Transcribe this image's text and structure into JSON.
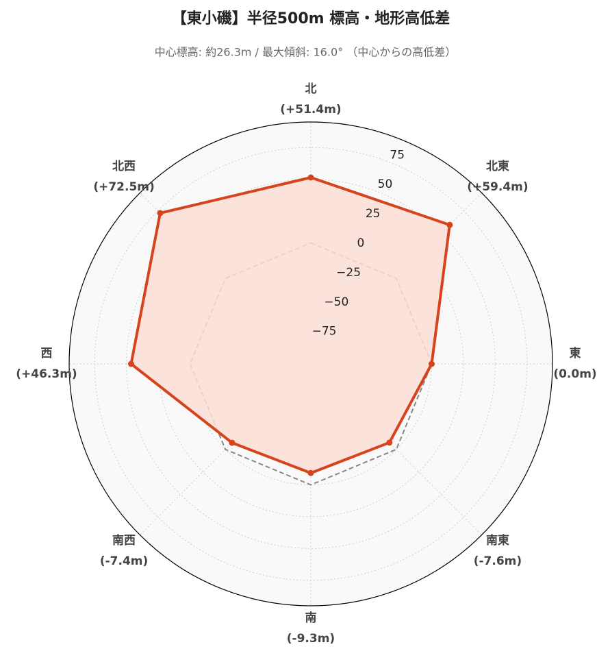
{
  "chart_data": {
    "type": "radar",
    "title": "【東小磯】半径500m 標高・地形高低差",
    "subtitle": "中心標高: 約26.3m / 最大傾斜: 16.0° （中心からの高低差）",
    "categories": [
      "北",
      "北東",
      "東",
      "南東",
      "南",
      "南西",
      "西",
      "北西"
    ],
    "values": [
      51.4,
      59.4,
      0.0,
      -7.6,
      -9.3,
      -7.4,
      46.3,
      72.5
    ],
    "value_labels": [
      "(+51.4m)",
      "(+59.4m)",
      "(0.0m)",
      "(-7.6m)",
      "(-9.3m)",
      "(-7.4m)",
      "(+46.3m)",
      "(+72.5m)"
    ],
    "color": "#d5441c",
    "fill_color": "#fcded6",
    "baseline": 0,
    "ylim": [
      -95,
      95
    ],
    "yticks": [
      {
        "value": -75,
        "label": "−75"
      },
      {
        "value": -50,
        "label": "−50"
      },
      {
        "value": -25,
        "label": "−25"
      },
      0,
      25,
      50,
      75
    ],
    "grid": true
  }
}
